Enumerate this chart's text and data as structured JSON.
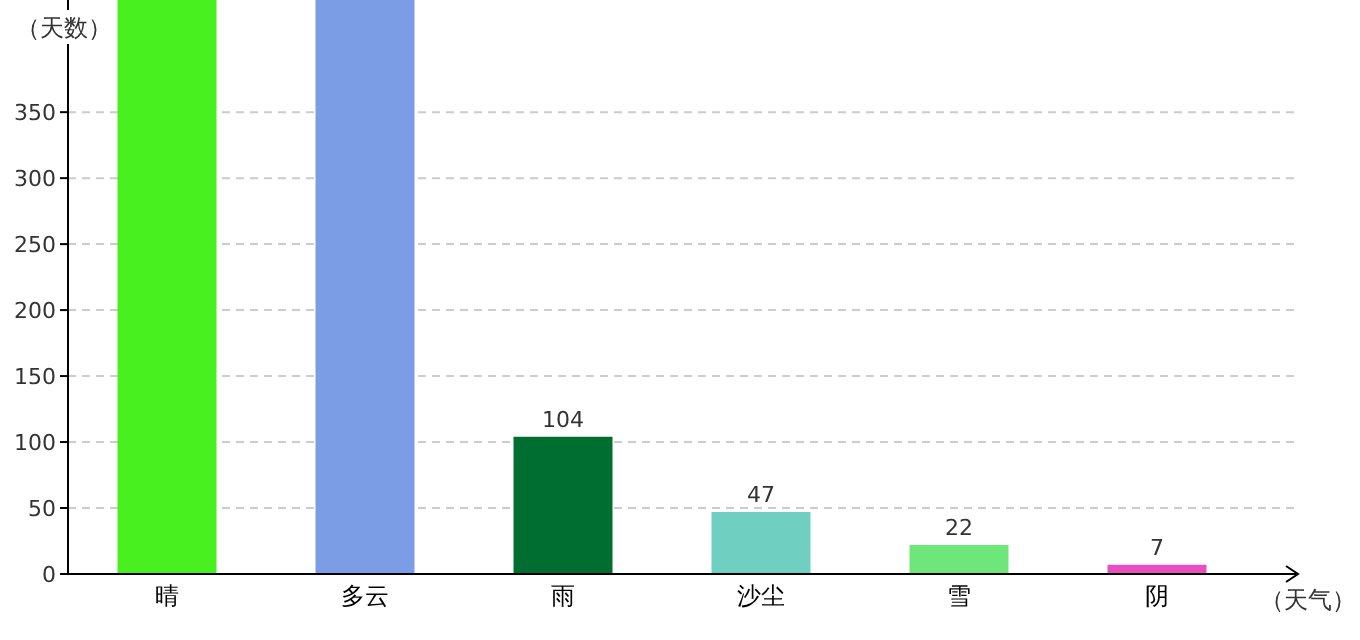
{
  "chart_data": {
    "type": "bar",
    "xlabel": "（天气）",
    "ylabel": "（天数）",
    "categories": [
      "晴",
      "多云",
      "雨",
      "沙尘",
      "雪",
      "阴"
    ],
    "values": [
      435,
      435,
      104,
      47,
      22,
      7
    ],
    "value_labels": [
      null,
      null,
      "104",
      "47",
      "22",
      "7"
    ],
    "colors": [
      "#48f020",
      "#7b9de6",
      "#006e30",
      "#6fcfc0",
      "#6ee67a",
      "#e84fc0"
    ],
    "ylim": [
      0,
      435
    ],
    "yticks": [
      0,
      50,
      100,
      150,
      200,
      250,
      300,
      350
    ],
    "grid": "y"
  }
}
